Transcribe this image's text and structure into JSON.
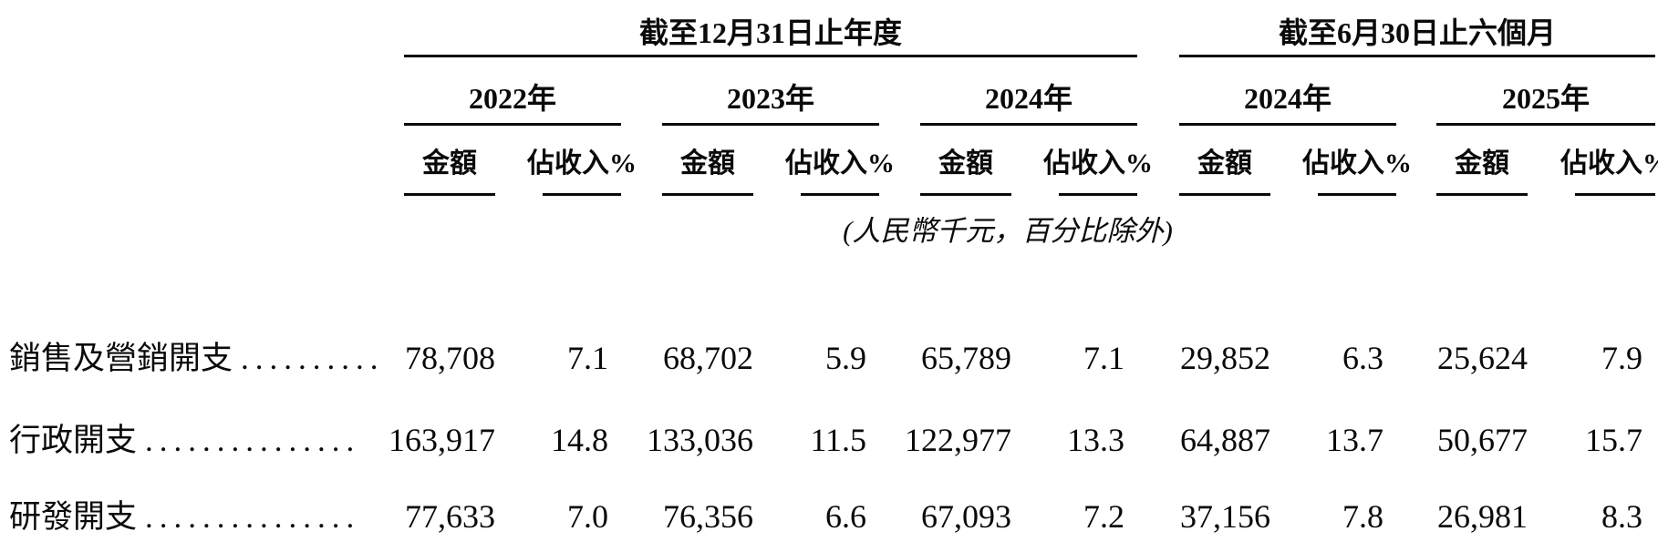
{
  "table": {
    "group_headers": [
      {
        "title": "截至12月31日止年度"
      },
      {
        "title": "截至6月30日止六個月"
      }
    ],
    "year_headers": [
      "2022年",
      "2023年",
      "2024年",
      "2024年",
      "2025年"
    ],
    "sub_headers": {
      "amount": "金額",
      "pct_of_revenue": "佔收入%"
    },
    "unit_note": "(人民幣千元，百分比除外)",
    "rows": [
      {
        "label": "銷售及營銷開支",
        "leader_dots": "..........",
        "cells": [
          "78,708",
          "7.1",
          "68,702",
          "5.9",
          "65,789",
          "7.1",
          "29,852",
          "6.3",
          "25,624",
          "7.9"
        ]
      },
      {
        "label": "行政開支",
        "leader_dots": "...............",
        "cells": [
          "163,917",
          "14.8",
          "133,036",
          "11.5",
          "122,977",
          "13.3",
          "64,887",
          "13.7",
          "50,677",
          "15.7"
        ]
      },
      {
        "label": "研發開支",
        "leader_dots": "...............",
        "cells": [
          "77,633",
          "7.0",
          "76,356",
          "6.6",
          "67,093",
          "7.2",
          "37,156",
          "7.8",
          "26,981",
          "8.3"
        ]
      }
    ]
  }
}
